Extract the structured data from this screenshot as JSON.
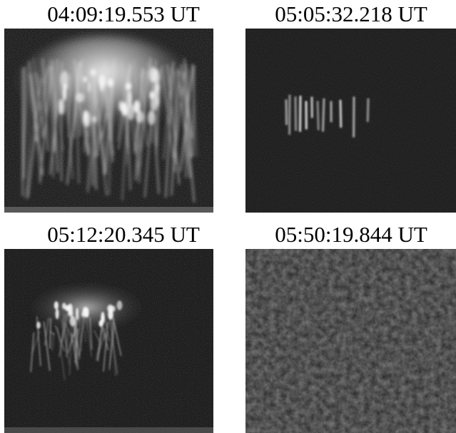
{
  "panels": [
    {
      "timestamp": "04:09:19.553 UT",
      "content": "bright sprite cluster with dense downward tendrils"
    },
    {
      "timestamp": "05:05:32.218 UT",
      "content": "small faint sprite group"
    },
    {
      "timestamp": "05:12:20.345 UT",
      "content": "medium sprite with bright band of beads and tendrils"
    },
    {
      "timestamp": "05:50:19.844 UT",
      "content": "noise only, no sprite"
    }
  ],
  "colors": {
    "background": "#ffffff",
    "frame": "#000000",
    "emission": "#ffffff"
  }
}
